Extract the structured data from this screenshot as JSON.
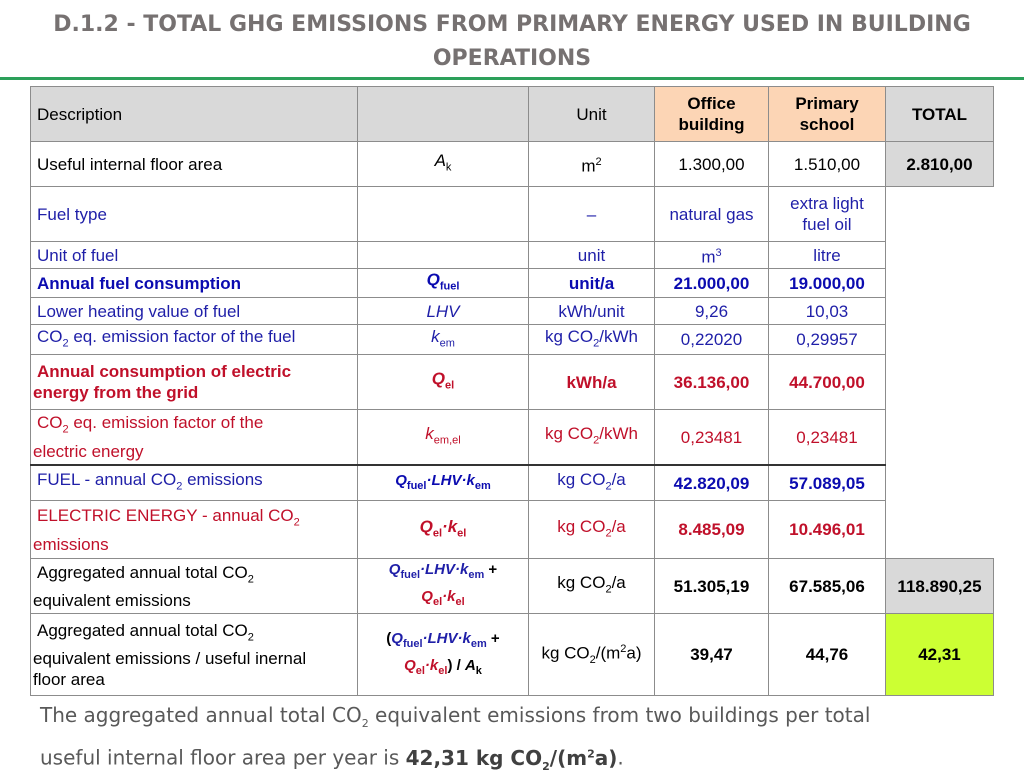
{
  "slide": {
    "title_line1": "D.1.2 - TOTAL GHG EMISSIONS FROM PRIMARY ENERGY USED IN BUILDING",
    "title_line2": "OPERATIONS"
  },
  "table": {
    "headers": {
      "description": "Description",
      "unit": "Unit",
      "office": [
        "Office",
        "building"
      ],
      "school": [
        "Primary",
        "school"
      ],
      "total": "TOTAL"
    },
    "rows": {
      "floor_area": {
        "label": "Useful internal floor area",
        "symbol": "A",
        "symbol_sub": "k",
        "unit": "m",
        "unit_sup": "2",
        "office": "1.300,00",
        "school": "1.510,00",
        "total": "2.810,00"
      },
      "fuel_type": {
        "label": "Fuel type",
        "unit": "–",
        "office": "natural gas",
        "school": [
          "extra light",
          "fuel oil"
        ]
      },
      "unit_of_fuel": {
        "label": "Unit of fuel",
        "unit": "unit",
        "office": "m",
        "office_sup": "3",
        "school": "litre"
      },
      "annual_fuel": {
        "label": "Annual fuel consumption",
        "symbol": "Q",
        "symbol_sub": "fuel",
        "unit": "unit/a",
        "office": "21.000,00",
        "school": "19.000,00"
      },
      "lhv": {
        "label": "Lower heating value of fuel",
        "symbol": "LHV",
        "unit": "kWh/unit",
        "office": "9,26",
        "school": "10,03"
      },
      "fuel_ef": {
        "label_pre": "CO",
        "label_sub": "2",
        "label_post": " eq. emission factor of the fuel",
        "symbol": "k",
        "symbol_sub": "em",
        "unit_pre": "kg CO",
        "unit_sub": "2",
        "unit_post": "/kWh",
        "office": "0,22020",
        "school": "0,29957"
      },
      "annual_elec": {
        "label_line1": "Annual consumption of electric",
        "label_line2": "energy from the grid",
        "symbol": "Q",
        "symbol_sub": "el",
        "unit": "kWh/a",
        "office": "36.136,00",
        "school": "44.700,00"
      },
      "elec_ef": {
        "label_pre": "CO",
        "label_sub": "2",
        "label_line1_post": " eq. emission factor of the",
        "label_line2": "electric energy",
        "symbol": "k",
        "symbol_sub": "em,el",
        "unit_pre": "kg CO",
        "unit_sub": "2",
        "unit_post": "/kWh",
        "office": "0,23481",
        "school": "0,23481"
      },
      "fuel_co2": {
        "label_pre": "FUEL - annual CO",
        "label_sub": "2",
        "label_post": " emissions",
        "formula": [
          "Q",
          "fuel",
          "·LHV·k",
          "em"
        ],
        "unit_pre": "kg CO",
        "unit_sub": "2",
        "unit_post": "/a",
        "office": "42.820,09",
        "school": "57.089,05"
      },
      "elec_co2": {
        "label_line1": "ELECTRIC ENERGY - annual CO",
        "label_sub": "2",
        "label_line2": "emissions",
        "formula": [
          "Q",
          "el",
          "·k",
          "el"
        ],
        "unit_pre": "kg CO",
        "unit_sub": "2",
        "unit_post": "/a",
        "office": "8.485,09",
        "school": "10.496,01"
      },
      "aggregated": {
        "label_line1": "Aggregated annual total CO",
        "label_sub": "2",
        "label_line2": "equivalent emissions",
        "formula_line1": [
          "Q",
          "fuel",
          "·LHV·k",
          "em",
          " +"
        ],
        "formula_line2": [
          "Q",
          "el",
          "·k",
          "el"
        ],
        "unit_pre": "kg CO",
        "unit_sub": "2",
        "unit_post": "/a",
        "office": "51.305,19",
        "school": "67.585,06",
        "total": "118.890,25"
      },
      "per_area": {
        "label_line1": "Aggregated annual total CO",
        "label_sub": "2",
        "label_line2": "equivalent emissions  / useful inernal",
        "label_line3": "floor area",
        "formula_line1": [
          "(",
          "Q",
          "fuel",
          "·LHV·k",
          "em",
          " +"
        ],
        "formula_line2": [
          "Q",
          "el",
          "·k",
          "el",
          ") / ",
          "A",
          "k"
        ],
        "unit_pre": "kg CO",
        "unit_sub": "2",
        "unit_mid": "/(m",
        "unit_sup": "2",
        "unit_post": "a)",
        "office": "39,47",
        "school": "44,76",
        "total": "42,31"
      }
    }
  },
  "footnote": {
    "text1": "The aggregated annual total CO",
    "sub1": "2",
    "text2": " equivalent emissions from two buildings per total",
    "text3": "useful internal floor area per year is  ",
    "value_pre": "42,31 kg CO",
    "value_sub": "2",
    "value_mid": "/(m",
    "value_sup": "2",
    "value_post": "a)",
    "text4": "."
  },
  "colors": {
    "title": "#767171",
    "rule": "#2ca05a",
    "header_gray": "#d9d9d9",
    "header_orange": "#fcd5b5",
    "total_green": "#ccff33",
    "blue_text": "#1f1fa8",
    "red_text": "#c0102a"
  }
}
